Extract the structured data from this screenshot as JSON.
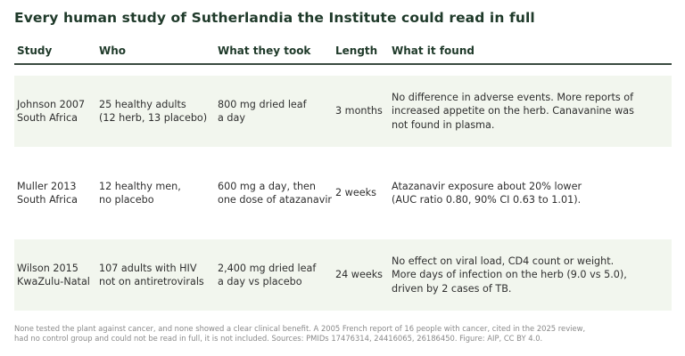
{
  "title": "Every human study of Sutherlandia the Institute could read in full",
  "table": {
    "headers": {
      "study": "Study",
      "who": "Who",
      "took": "What they took",
      "length": "Length",
      "found": "What it found"
    },
    "rows": [
      {
        "study": [
          "Johnson 2007",
          "South Africa"
        ],
        "who": [
          "25 healthy adults",
          "(12 herb, 13 placebo)"
        ],
        "took": [
          "800 mg dried leaf",
          "a day"
        ],
        "length": "3 months",
        "found": [
          "No difference in adverse events. More reports of",
          "increased appetite on the herb. Canavanine was",
          "not found in plasma."
        ]
      },
      {
        "study": [
          "Muller 2013",
          "South Africa"
        ],
        "who": [
          "12 healthy men,",
          "no placebo"
        ],
        "took": [
          "600 mg a day, then",
          "one dose of atazanavir"
        ],
        "length": "2 weeks",
        "found": [
          "Atazanavir exposure about 20% lower",
          "(AUC ratio 0.80, 90% CI 0.63 to 1.01)."
        ]
      },
      {
        "study": [
          "Wilson 2015",
          "KwaZulu-Natal"
        ],
        "who": [
          "107 adults with HIV",
          "not on antiretrovirals"
        ],
        "took": [
          "2,400 mg dried leaf",
          "a day vs placebo"
        ],
        "length": "24 weeks",
        "found": [
          "No effect on viral load, CD4 count or weight.",
          "More days of infection on the herb (9.0 vs 5.0),",
          "driven by 2 cases of TB."
        ]
      }
    ]
  },
  "footnote": [
    "None tested the plant against cancer, and none showed a clear clinical benefit. A 2005 French report of 16 people with cancer, cited in the 2025 review,",
    "had no control group and could not be read in full, it is not included. Sources: PMIDs 17476314, 24416065, 26186450. Figure: AIP, CC BY 4.0."
  ],
  "colors": {
    "title": "#1f3a2a",
    "row_shading": "#f2f6ee",
    "header_rule": "#3a4a40",
    "footnote": "#8a8a8a"
  }
}
